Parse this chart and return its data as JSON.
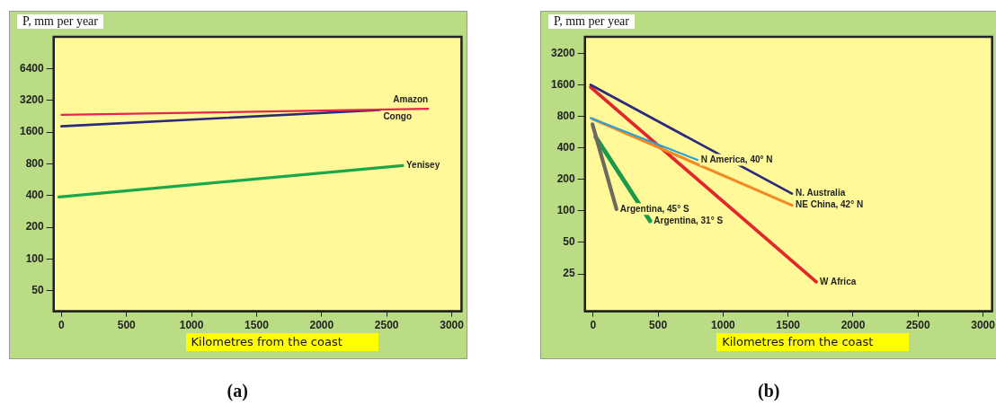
{
  "chart_data": [
    {
      "type": "line",
      "title": "(a)",
      "ylabel": "P, mm per year",
      "xlabel": "Kilometres from the coast",
      "log": "y",
      "grid": false,
      "legend": false,
      "marker": "none",
      "xlim": [
        -60,
        3075
      ],
      "xticks": [
        0,
        500,
        1000,
        1500,
        2000,
        2500,
        3000
      ],
      "ylim": [
        32,
        12800
      ],
      "yticks": [
        50,
        100,
        200,
        400,
        800,
        1600,
        3200,
        6400
      ],
      "series": [
        {
          "name": "Amazon",
          "color": "#e8254a",
          "x": [
            0,
            2818
          ],
          "values": [
            2330,
            2660
          ]
        },
        {
          "name": "Congo",
          "color": "#2c2a7c",
          "x": [
            0,
            2446
          ],
          "values": [
            1815,
            2590
          ]
        },
        {
          "name": "Yenisey",
          "color": "#1aa84a",
          "x": [
            -20,
            2623
          ],
          "values": [
            387,
            770
          ]
        }
      ]
    },
    {
      "type": "line",
      "title": "(b)",
      "ylabel": "P, mm per year",
      "xlabel": "Kilometres from the coast",
      "log": "y",
      "grid": false,
      "legend": false,
      "marker": "none",
      "xlim": [
        -63,
        3070
      ],
      "xticks": [
        0,
        500,
        1000,
        1500,
        2000,
        2500,
        3000
      ],
      "ylim": [
        11,
        4600
      ],
      "yticks": [
        25,
        50,
        100,
        200,
        400,
        800,
        1600,
        3200
      ],
      "series": [
        {
          "name": "N America, 40° N",
          "color": "#2aa0d8",
          "x": [
            -19,
            802
          ],
          "values": [
            770,
            307
          ]
        },
        {
          "name": "N. Australia",
          "color": "#2c2a7c",
          "x": [
            -19,
            1530
          ],
          "values": [
            1600,
            146
          ]
        },
        {
          "name": "NE China, 42° N",
          "color": "#f28a25",
          "x": [
            -7,
            1530
          ],
          "values": [
            760,
            113
          ]
        },
        {
          "name": "W Africa",
          "color": "#e3262b",
          "x": [
            -19,
            1717
          ],
          "values": [
            1520,
            21
          ]
        },
        {
          "name": "Argentina, 45° S",
          "color": "#6f6a5d",
          "x": [
            -5,
            180
          ],
          "values": [
            673,
            104
          ]
        },
        {
          "name": "Argentina, 31° S",
          "color": "#1a9a48",
          "x": [
            19,
            439
          ],
          "values": [
            510,
            80
          ]
        }
      ]
    }
  ]
}
